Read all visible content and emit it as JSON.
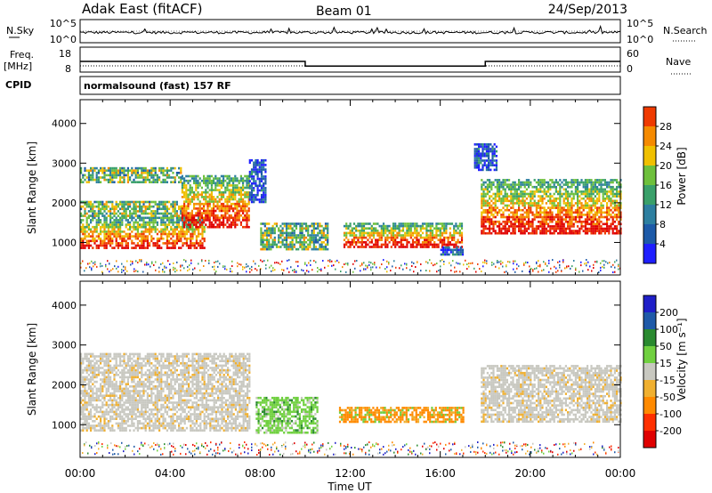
{
  "header": {
    "station": "Adak East (fitACF)",
    "beam": "Beam 01",
    "date": "24/Sep/2013"
  },
  "noise_panel": {
    "left_label": "N.Sky",
    "right_label": "N.Search",
    "left_ticks": [
      "10^5",
      "10^0"
    ],
    "right_ticks": [
      "10^5",
      "10^0"
    ]
  },
  "freq_panel": {
    "left_label_1": "Freq.",
    "left_label_2": "[MHz]",
    "left_ticks": [
      "18",
      "8"
    ],
    "right_label": "Nave",
    "right_ticks": [
      "60",
      "0"
    ],
    "freq_ylim": [
      8,
      18
    ],
    "freq_steps": [
      {
        "t0": 0,
        "t1": 10,
        "v": 13
      },
      {
        "t0": 10,
        "t1": 18,
        "v": 10.6
      },
      {
        "t0": 18,
        "t1": 24,
        "v": 13
      }
    ]
  },
  "cpid": {
    "label": "CPID",
    "text": "normalsound (fast) 157 RF"
  },
  "colors": {
    "power": [
      "#1f1fff",
      "#1d5aa8",
      "#2d7fa0",
      "#3aa06a",
      "#6ec03c",
      "#f0c000",
      "#f58a00",
      "#ef3a00",
      "#e00000"
    ],
    "velocity": [
      "#e00000",
      "#ff3000",
      "#ff8a00",
      "#f0b030",
      "#c8c8c0",
      "#70d040",
      "#2a8a30",
      "#1f5aa8",
      "#1f1fc8"
    ]
  },
  "chart_data": [
    {
      "type": "heatmap",
      "name": "power",
      "xlabel": "",
      "ylabel": "Slant Range [km]",
      "xlim": [
        0,
        24
      ],
      "ylim": [
        180,
        4600
      ],
      "yticks": [
        1000,
        2000,
        3000,
        4000
      ],
      "colorbar_label": "Power [dB]",
      "colorbar_ticks": [
        "4",
        "8",
        "12",
        "16",
        "20",
        "24",
        "28"
      ],
      "colorbar_range": [
        0,
        32
      ],
      "regions": [
        {
          "t0": 0,
          "t1": 5.5,
          "r0": 850,
          "r1": 1650,
          "level": "high"
        },
        {
          "t0": 0,
          "t1": 4.5,
          "r0": 1650,
          "r1": 2050,
          "level": "mid"
        },
        {
          "t0": 0,
          "t1": 4.5,
          "r0": 2500,
          "r1": 2900,
          "level": "mid"
        },
        {
          "t0": 4.5,
          "t1": 7.5,
          "r0": 1400,
          "r1": 2700,
          "level": "high"
        },
        {
          "t0": 7.5,
          "t1": 8.2,
          "r0": 2000,
          "r1": 3100,
          "level": "low"
        },
        {
          "t0": 8.0,
          "t1": 11.0,
          "r0": 800,
          "r1": 1500,
          "level": "mid"
        },
        {
          "t0": 11.7,
          "t1": 17.0,
          "r0": 900,
          "r1": 1500,
          "level": "high"
        },
        {
          "t0": 16.0,
          "t1": 17.0,
          "r0": 700,
          "r1": 900,
          "level": "low"
        },
        {
          "t0": 17.8,
          "t1": 24.0,
          "r0": 1200,
          "r1": 2600,
          "level": "high"
        },
        {
          "t0": 17.5,
          "t1": 18.5,
          "r0": 2800,
          "r1": 3500,
          "level": "low"
        }
      ]
    },
    {
      "type": "heatmap",
      "name": "velocity",
      "xlabel": "Time UT",
      "ylabel": "Slant Range [km]",
      "xlim": [
        0,
        24
      ],
      "ylim": [
        180,
        4600
      ],
      "yticks": [
        1000,
        2000,
        3000,
        4000
      ],
      "xticks": [
        "00:00",
        "04:00",
        "08:00",
        "12:00",
        "16:00",
        "20:00",
        "00:00"
      ],
      "colorbar_label": "Velocity [m s⁻¹]",
      "colorbar_ticks": [
        "-200",
        "-100",
        "-50",
        "-15",
        "15",
        "50",
        "100",
        "200"
      ],
      "regions": [
        {
          "t0": 0,
          "t1": 7.5,
          "r0": 850,
          "r1": 2800,
          "level": "gray"
        },
        {
          "t0": 7.8,
          "t1": 10.5,
          "r0": 800,
          "r1": 1700,
          "level": "green"
        },
        {
          "t0": 11.5,
          "t1": 17.0,
          "r0": 1050,
          "r1": 1450,
          "level": "orange"
        },
        {
          "t0": 17.8,
          "t1": 24.0,
          "r0": 1100,
          "r1": 2500,
          "level": "gray"
        }
      ]
    }
  ]
}
